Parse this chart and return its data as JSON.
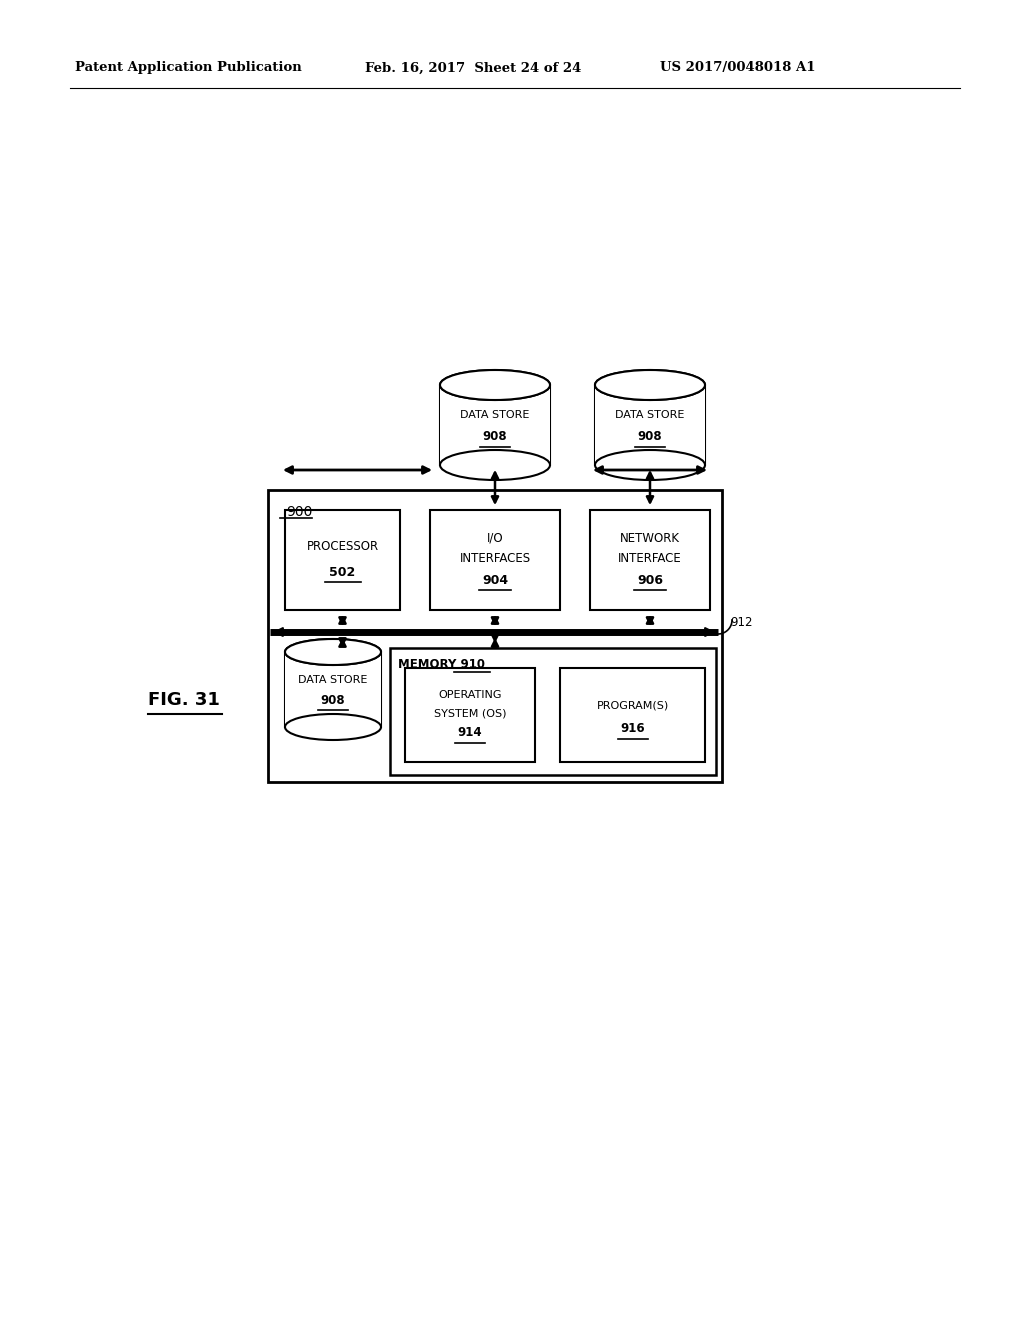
{
  "background_color": "#ffffff",
  "header_left": "Patent Application Publication",
  "header_mid": "Feb. 16, 2017  Sheet 24 of 24",
  "header_right": "US 2017/0048018 A1",
  "fig_label": "FIG. 31",
  "outer_box_label": "900",
  "bus_label": "912",
  "processor_label1": "PROCESSOR",
  "processor_label2": "502",
  "io_label1": "I/O",
  "io_label2": "INTERFACES",
  "io_label3": "904",
  "net_label1": "NETWORK",
  "net_label2": "INTERFACE",
  "net_label3": "906",
  "ds1_label1": "DATA STORE",
  "ds1_label2": "908",
  "ds2_label1": "DATA STORE",
  "ds2_label2": "908",
  "ds3_label1": "DATA STORE",
  "ds3_label2": "908",
  "mem_label": "MEMORY 910",
  "os_label1": "OPERATING",
  "os_label2": "SYSTEM (OS)",
  "os_label3": "914",
  "prog_label1": "PROGRAM(S)",
  "prog_label2": "916"
}
